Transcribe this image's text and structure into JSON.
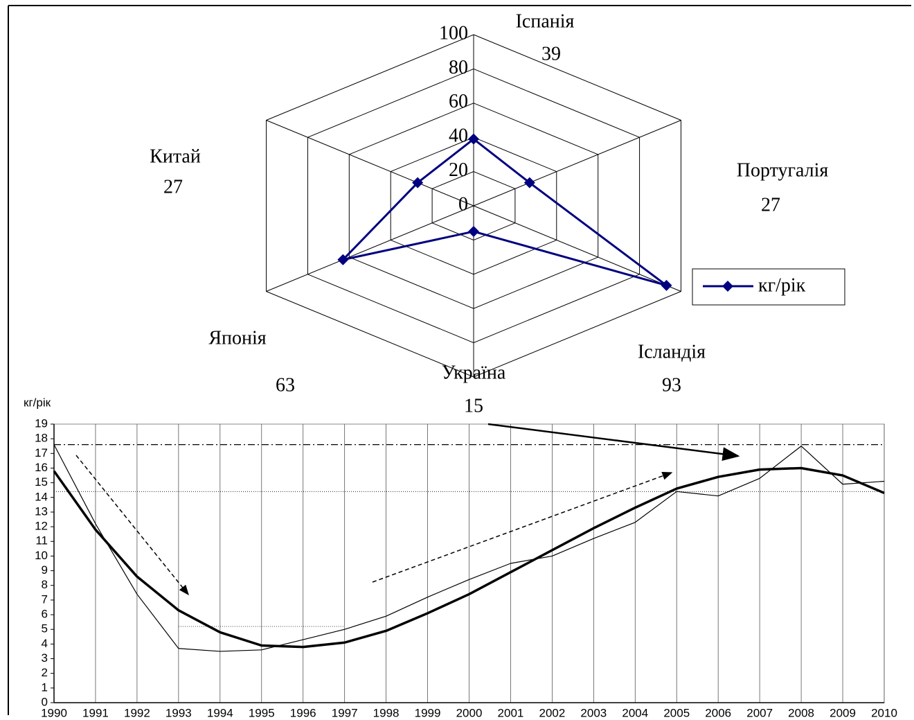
{
  "chart_data": [
    {
      "type": "radar",
      "categories": [
        "Іспанія",
        "Португалія",
        "Ісландія",
        "Україна",
        "Японія",
        "Китай"
      ],
      "series": [
        {
          "name": "кг/рік",
          "color": "#000080",
          "values": [
            39,
            27,
            93,
            15,
            63,
            27
          ]
        }
      ],
      "rlim": [
        0,
        100
      ],
      "rticks": [
        0,
        20,
        40,
        60,
        80,
        100
      ],
      "legend": "right"
    },
    {
      "type": "line",
      "ylabel": "кг/рік",
      "x": [
        1990,
        1991,
        1992,
        1993,
        1994,
        1995,
        1996,
        1997,
        1998,
        1999,
        2000,
        2001,
        2002,
        2003,
        2004,
        2005,
        2006,
        2007,
        2008,
        2009,
        2010
      ],
      "series": [
        {
          "color": "#000000",
          "width": 1.2,
          "values": [
            17.6,
            12.2,
            7.4,
            3.7,
            3.5,
            3.6,
            4.3,
            5.0,
            5.9,
            7.2,
            8.4,
            9.5,
            10.0,
            11.2,
            12.3,
            14.4,
            14.1,
            15.3,
            17.5,
            14.9,
            15.1
          ]
        },
        {
          "color": "#000000",
          "width": 3.5,
          "values": [
            15.8,
            11.8,
            8.6,
            6.3,
            4.8,
            3.9,
            3.8,
            4.1,
            4.9,
            6.1,
            7.4,
            8.9,
            10.4,
            11.9,
            13.3,
            14.6,
            15.4,
            15.9,
            16.0,
            15.5,
            14.3
          ]
        }
      ],
      "xlim": [
        1990,
        2010
      ],
      "ylim": [
        0,
        19
      ],
      "yticks": [
        0,
        1,
        2,
        3,
        4,
        5,
        6,
        7,
        8,
        9,
        10,
        11,
        12,
        13,
        14,
        15,
        16,
        17,
        18,
        19
      ],
      "grid": "x",
      "reference_lines": [
        {
          "value": 17.6,
          "style": "dash-dot"
        },
        {
          "value": 14.4,
          "style": "dotted"
        },
        {
          "value": 5.2,
          "style": "dotted",
          "x": [
            1993,
            1997
          ]
        }
      ]
    }
  ]
}
